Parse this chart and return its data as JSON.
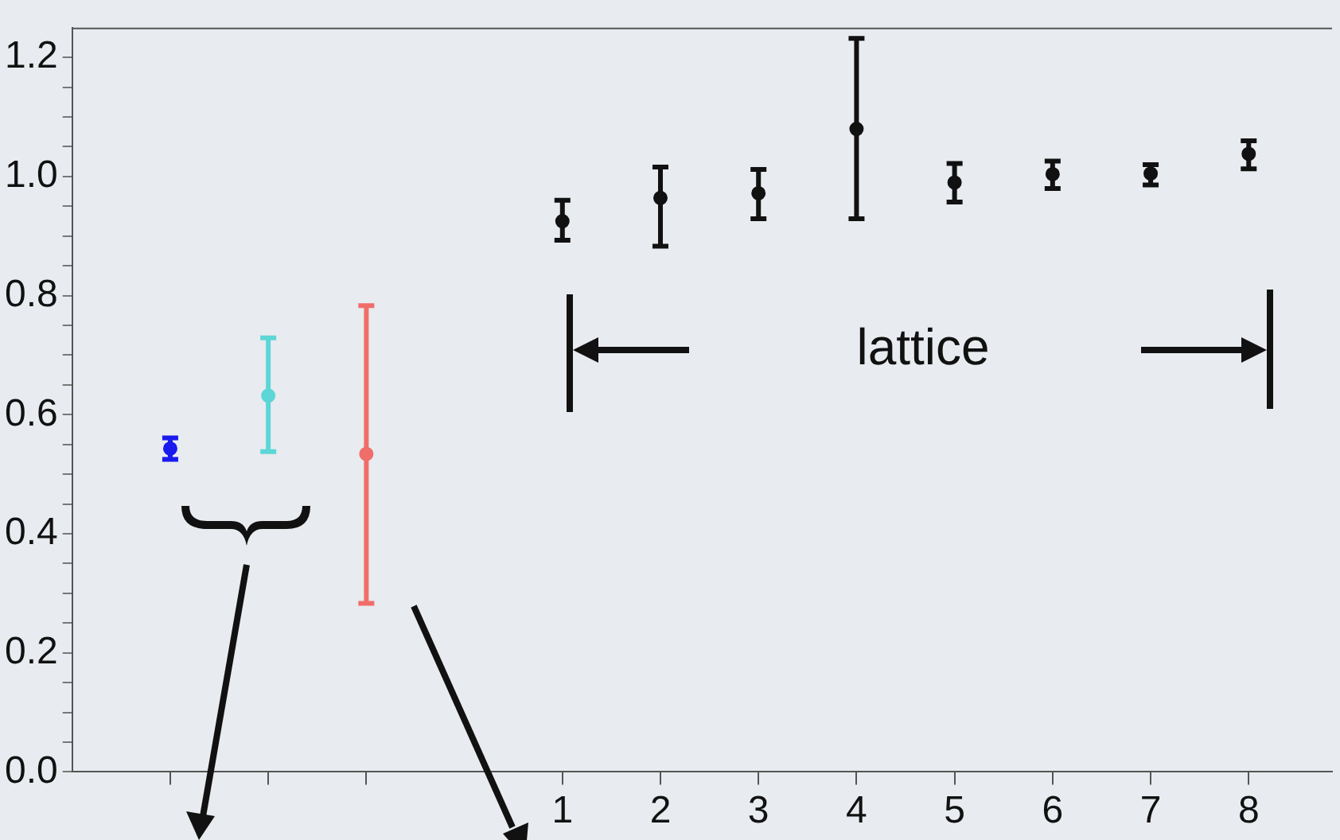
{
  "chart_data": {
    "type": "scatter",
    "xlim": [
      -4,
      8.85
    ],
    "ylim": [
      0,
      1.25
    ],
    "xticks": [
      {
        "value": -3,
        "label": null
      },
      {
        "value": -2,
        "label": null
      },
      {
        "value": -1,
        "label": null
      },
      1,
      2,
      3,
      4,
      5,
      6,
      7,
      8
    ],
    "yticks": [
      {
        "value": 0,
        "label": "0.0"
      },
      {
        "value": 0.05,
        "label": null
      },
      {
        "value": 0.1,
        "label": null
      },
      {
        "value": 0.15,
        "label": null
      },
      {
        "value": 0.2,
        "label": "0.2"
      },
      {
        "value": 0.25,
        "label": null
      },
      {
        "value": 0.3,
        "label": null
      },
      {
        "value": 0.35,
        "label": null
      },
      {
        "value": 0.4,
        "label": "0.4"
      },
      {
        "value": 0.45,
        "label": null
      },
      {
        "value": 0.5,
        "label": null
      },
      {
        "value": 0.55,
        "label": null
      },
      {
        "value": 0.6,
        "label": "0.6"
      },
      {
        "value": 0.65,
        "label": null
      },
      {
        "value": 0.7,
        "label": null
      },
      {
        "value": 0.75,
        "label": null
      },
      {
        "value": 0.8,
        "label": "0.8"
      },
      {
        "value": 0.85,
        "label": null
      },
      {
        "value": 0.9,
        "label": null
      },
      {
        "value": 0.95,
        "label": null
      },
      {
        "value": 1.0,
        "label": "1.0"
      },
      {
        "value": 1.05,
        "label": null
      },
      {
        "value": 1.1,
        "label": null
      },
      {
        "value": 1.15,
        "label": null
      },
      {
        "value": 1.2,
        "label": "1.2"
      }
    ],
    "grid": false,
    "legend": false,
    "series": [
      {
        "color": "#1a1aee",
        "x": [
          -3
        ],
        "values": [
          0.543
        ],
        "errors": [
          [
            0.525,
            0.561
          ]
        ]
      },
      {
        "color": "#5cd6d6",
        "x": [
          -2
        ],
        "values": [
          0.632
        ],
        "errors": [
          [
            0.538,
            0.729
          ]
        ]
      },
      {
        "color": "#f06e6a",
        "x": [
          -1
        ],
        "values": [
          0.534
        ],
        "errors": [
          [
            0.283,
            0.783
          ]
        ]
      },
      {
        "color": "#111111",
        "x": [
          1,
          2,
          3,
          4,
          5,
          6,
          7,
          8
        ],
        "values": [
          0.925,
          0.964,
          0.972,
          1.08,
          0.99,
          1.004,
          1.005,
          1.038
        ],
        "errors": [
          [
            0.893,
            0.96
          ],
          [
            0.883,
            1.016
          ],
          [
            0.929,
            1.012
          ],
          [
            0.929,
            1.232
          ],
          [
            0.957,
            1.022
          ],
          [
            0.98,
            1.026
          ],
          [
            0.986,
            1.02
          ],
          [
            1.013,
            1.06
          ]
        ]
      }
    ],
    "annotations": [
      "lattice"
    ]
  }
}
